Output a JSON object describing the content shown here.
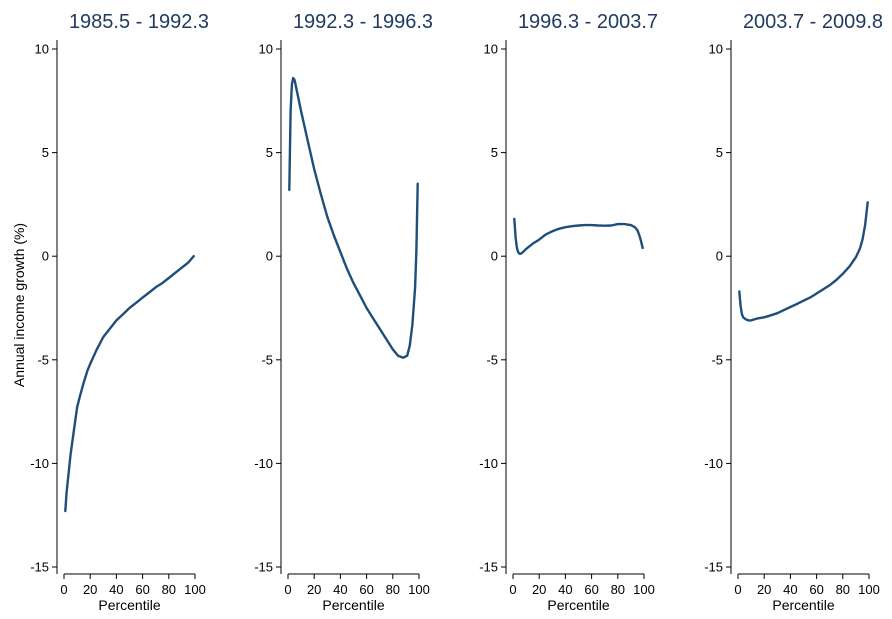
{
  "figure": {
    "ylabel": "Annual income growth (%)",
    "xlabel": "Percentile",
    "series_color": "#1f4e79",
    "title_color": "#1f3a5f"
  },
  "chart_data": [
    {
      "type": "line",
      "title": "1985.5 - 1992.3",
      "xlabel": "Percentile",
      "ylabel": "Annual income growth (%)",
      "xlim": [
        0,
        100
      ],
      "ylim": [
        -15,
        10
      ],
      "x_ticks": [
        "0",
        "20",
        "40",
        "60",
        "80",
        "100"
      ],
      "y_ticks": [
        "10",
        "5",
        "0",
        "-5",
        "-10",
        "-15"
      ],
      "grid": false,
      "series": [
        {
          "x": [
            1,
            2,
            3,
            4,
            5,
            6,
            8,
            10,
            12,
            15,
            18,
            20,
            25,
            30,
            35,
            40,
            45,
            50,
            55,
            60,
            65,
            70,
            75,
            80,
            85,
            90,
            95,
            99
          ],
          "y": [
            -12.3,
            -11.4,
            -10.8,
            -10.2,
            -9.6,
            -9.1,
            -8.2,
            -7.3,
            -6.8,
            -6.1,
            -5.5,
            -5.2,
            -4.5,
            -3.9,
            -3.5,
            -3.1,
            -2.8,
            -2.5,
            -2.25,
            -2.0,
            -1.75,
            -1.5,
            -1.3,
            -1.05,
            -0.8,
            -0.55,
            -0.3,
            0.0
          ]
        }
      ]
    },
    {
      "type": "line",
      "title": "1992.3 - 1996.3",
      "xlabel": "Percentile",
      "ylabel": "",
      "xlim": [
        0,
        100
      ],
      "ylim": [
        -15,
        10
      ],
      "x_ticks": [
        "0",
        "20",
        "40",
        "60",
        "80",
        "100"
      ],
      "y_ticks": [
        "10",
        "5",
        "0",
        "-5",
        "-10",
        "-15"
      ],
      "grid": false,
      "series": [
        {
          "x": [
            1,
            2,
            3,
            4,
            5,
            7,
            10,
            15,
            20,
            25,
            30,
            35,
            40,
            45,
            50,
            55,
            60,
            65,
            70,
            75,
            80,
            84,
            88,
            91,
            93,
            95,
            97,
            98,
            99
          ],
          "y": [
            3.2,
            7.0,
            8.3,
            8.6,
            8.5,
            7.9,
            7.0,
            5.6,
            4.2,
            3.0,
            1.9,
            1.0,
            0.2,
            -0.6,
            -1.3,
            -1.9,
            -2.5,
            -3.0,
            -3.5,
            -4.0,
            -4.5,
            -4.8,
            -4.9,
            -4.8,
            -4.3,
            -3.3,
            -1.5,
            0.3,
            3.5
          ]
        }
      ]
    },
    {
      "type": "line",
      "title": "1996.3 - 2003.7",
      "xlabel": "Percentile",
      "ylabel": "",
      "xlim": [
        0,
        100
      ],
      "ylim": [
        -15,
        10
      ],
      "x_ticks": [
        "0",
        "20",
        "40",
        "60",
        "80",
        "100"
      ],
      "y_ticks": [
        "10",
        "5",
        "0",
        "-5",
        "-10",
        "-15"
      ],
      "grid": false,
      "series": [
        {
          "x": [
            1,
            2,
            3,
            4,
            5,
            6,
            8,
            10,
            15,
            20,
            25,
            30,
            35,
            40,
            45,
            50,
            55,
            60,
            65,
            70,
            75,
            80,
            85,
            90,
            93,
            95,
            97,
            99
          ],
          "y": [
            1.8,
            0.9,
            0.4,
            0.2,
            0.12,
            0.12,
            0.22,
            0.35,
            0.6,
            0.8,
            1.05,
            1.2,
            1.32,
            1.4,
            1.45,
            1.48,
            1.5,
            1.5,
            1.48,
            1.47,
            1.48,
            1.55,
            1.55,
            1.5,
            1.4,
            1.25,
            0.9,
            0.4
          ]
        }
      ]
    },
    {
      "type": "line",
      "title": "2003.7 - 2009.8",
      "xlabel": "Percentile",
      "ylabel": "",
      "xlim": [
        0,
        100
      ],
      "ylim": [
        -15,
        10
      ],
      "x_ticks": [
        "0",
        "20",
        "40",
        "60",
        "80",
        "100"
      ],
      "y_ticks": [
        "10",
        "5",
        "0",
        "-5",
        "-10",
        "-15"
      ],
      "grid": false,
      "series": [
        {
          "x": [
            1,
            2,
            3,
            4,
            6,
            8,
            10,
            15,
            20,
            25,
            30,
            35,
            40,
            45,
            50,
            55,
            60,
            65,
            70,
            75,
            80,
            85,
            90,
            93,
            95,
            97,
            99
          ],
          "y": [
            -1.7,
            -2.4,
            -2.8,
            -2.95,
            -3.05,
            -3.1,
            -3.1,
            -3.0,
            -2.95,
            -2.85,
            -2.75,
            -2.6,
            -2.45,
            -2.3,
            -2.15,
            -2.0,
            -1.8,
            -1.6,
            -1.4,
            -1.15,
            -0.85,
            -0.5,
            -0.05,
            0.35,
            0.8,
            1.5,
            2.6
          ]
        }
      ]
    }
  ]
}
